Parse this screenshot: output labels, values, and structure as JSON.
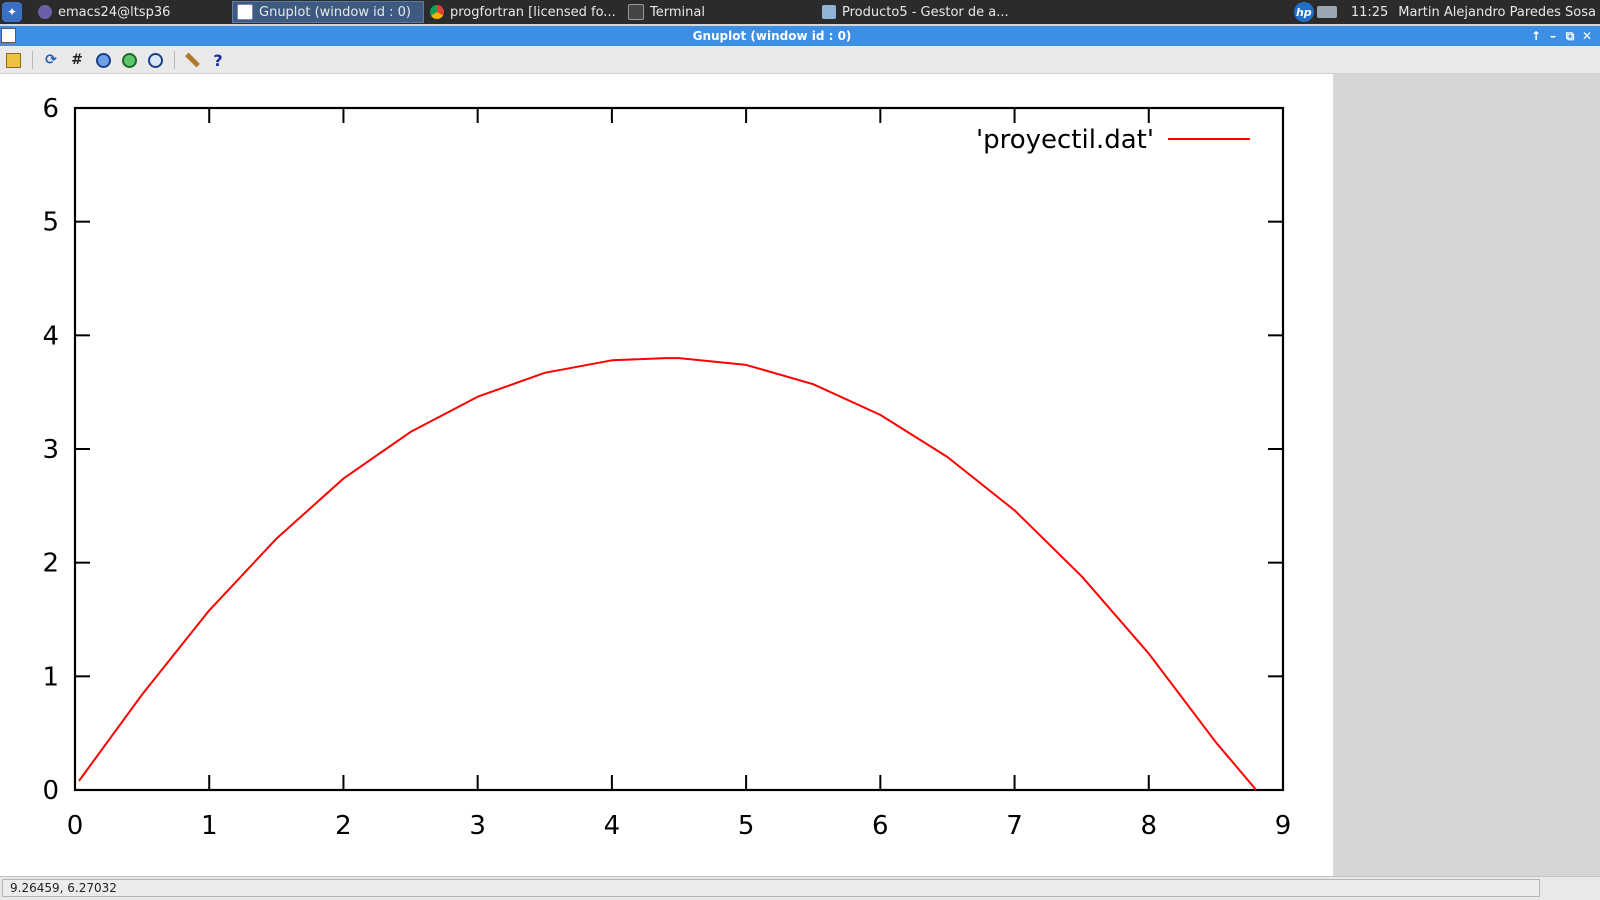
{
  "taskbar": {
    "tasks": [
      {
        "label": "emacs24@ltsp36",
        "icon": "emacs-icon",
        "active": false
      },
      {
        "label": "Gnuplot (window id : 0)",
        "icon": "gnuplot-icon",
        "active": true
      },
      {
        "label": "progfortran [licensed fo...",
        "icon": "chrome-icon",
        "active": false
      },
      {
        "label": "Terminal",
        "icon": "terminal-icon",
        "active": false
      },
      {
        "label": "Producto5 - Gestor de a...",
        "icon": "folder-icon",
        "active": false
      }
    ],
    "hp_logo": "hp",
    "clock": "11:25",
    "user": "Martin Alejandro Paredes Sosa"
  },
  "window": {
    "title": "Gnuplot (window id : 0)",
    "buttons": {
      "raise": "↑",
      "minimize": "–",
      "maximize": "⧉",
      "close": "✕"
    }
  },
  "toolbar": {
    "icons": [
      "copy-icon",
      "replot-icon",
      "grid-icon",
      "zoom-prev-icon",
      "zoom-next-icon",
      "autoscale-icon",
      "options-icon",
      "help-icon"
    ],
    "glyphs": {
      "replot": "⟳",
      "grid": "#",
      "help": "?"
    }
  },
  "status": {
    "coordinates": "9.26459,  6.27032"
  },
  "chart_data": {
    "type": "line",
    "title": "",
    "xlabel": "",
    "ylabel": "",
    "xlim": [
      0,
      9
    ],
    "ylim": [
      0,
      6
    ],
    "xticks": [
      "0",
      "1",
      "2",
      "3",
      "4",
      "5",
      "6",
      "7",
      "8",
      "9"
    ],
    "yticks": [
      "0",
      "1",
      "2",
      "3",
      "4",
      "5",
      "6"
    ],
    "grid": false,
    "legend_position": "top-right",
    "series": [
      {
        "name": "'proyectil.dat'",
        "color": "#ff0000",
        "x": [
          0.03,
          0.5,
          1.0,
          1.5,
          2.0,
          2.5,
          3.0,
          3.5,
          4.0,
          4.4,
          4.5,
          5.0,
          5.5,
          6.0,
          6.5,
          7.0,
          7.5,
          8.0,
          8.5,
          8.8
        ],
        "y": [
          0.08,
          0.84,
          1.58,
          2.21,
          2.74,
          3.15,
          3.46,
          3.67,
          3.78,
          3.8,
          3.8,
          3.74,
          3.57,
          3.3,
          2.93,
          2.46,
          1.88,
          1.2,
          0.42,
          0.0
        ]
      }
    ]
  }
}
